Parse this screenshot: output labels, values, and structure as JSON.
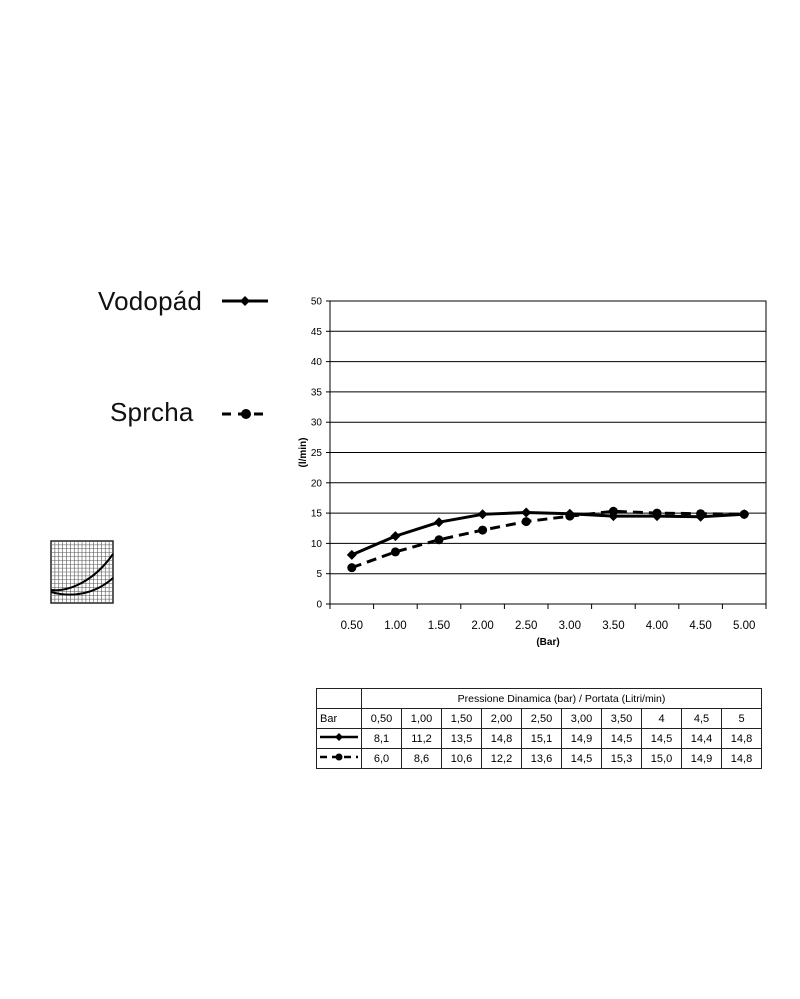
{
  "legend": {
    "items": [
      {
        "label": "Vodopád",
        "style": "solid",
        "marker": "diamond"
      },
      {
        "label": "Sprcha",
        "style": "dashed",
        "marker": "circle"
      }
    ]
  },
  "chart_data": {
    "type": "line",
    "categories": [
      "0.50",
      "1.00",
      "1.50",
      "2.00",
      "2.50",
      "3.00",
      "3.50",
      "4.00",
      "4.50",
      "5.00"
    ],
    "series": [
      {
        "name": "Vodopád",
        "values": [
          8.1,
          11.2,
          13.5,
          14.8,
          15.1,
          14.9,
          14.5,
          14.5,
          14.4,
          14.8
        ],
        "line": "solid",
        "marker": "diamond"
      },
      {
        "name": "Sprcha",
        "values": [
          6.0,
          8.6,
          10.6,
          12.2,
          13.6,
          14.5,
          15.3,
          15.0,
          14.9,
          14.8
        ],
        "line": "dashed",
        "marker": "circle"
      }
    ],
    "xlabel": "(Bar)",
    "ylabel": "(l/min)",
    "ylim": [
      0,
      50
    ],
    "yticks": [
      "0",
      "5",
      "10",
      "15",
      "20",
      "25",
      "30",
      "35",
      "40",
      "45",
      "50"
    ],
    "grid": "horizontal",
    "color": "#000000"
  },
  "table": {
    "title": "Pressione Dinamica (bar) / Portata (Litri/min)",
    "row_header": "Bar",
    "columns": [
      "0,50",
      "1,00",
      "1,50",
      "2,00",
      "2,50",
      "3,00",
      "3,50",
      "4",
      "4,5",
      "5"
    ],
    "rows": [
      {
        "style": "solid",
        "values": [
          "8,1",
          "11,2",
          "13,5",
          "14,8",
          "15,1",
          "14,9",
          "14,5",
          "14,5",
          "14,4",
          "14,8"
        ]
      },
      {
        "style": "dashed",
        "values": [
          "6,0",
          "8,6",
          "10,6",
          "12,2",
          "13,6",
          "14,5",
          "15,3",
          "15,0",
          "14,9",
          "14,8"
        ]
      }
    ]
  },
  "icons": {
    "thumbnail": "performance-curve-icon"
  }
}
